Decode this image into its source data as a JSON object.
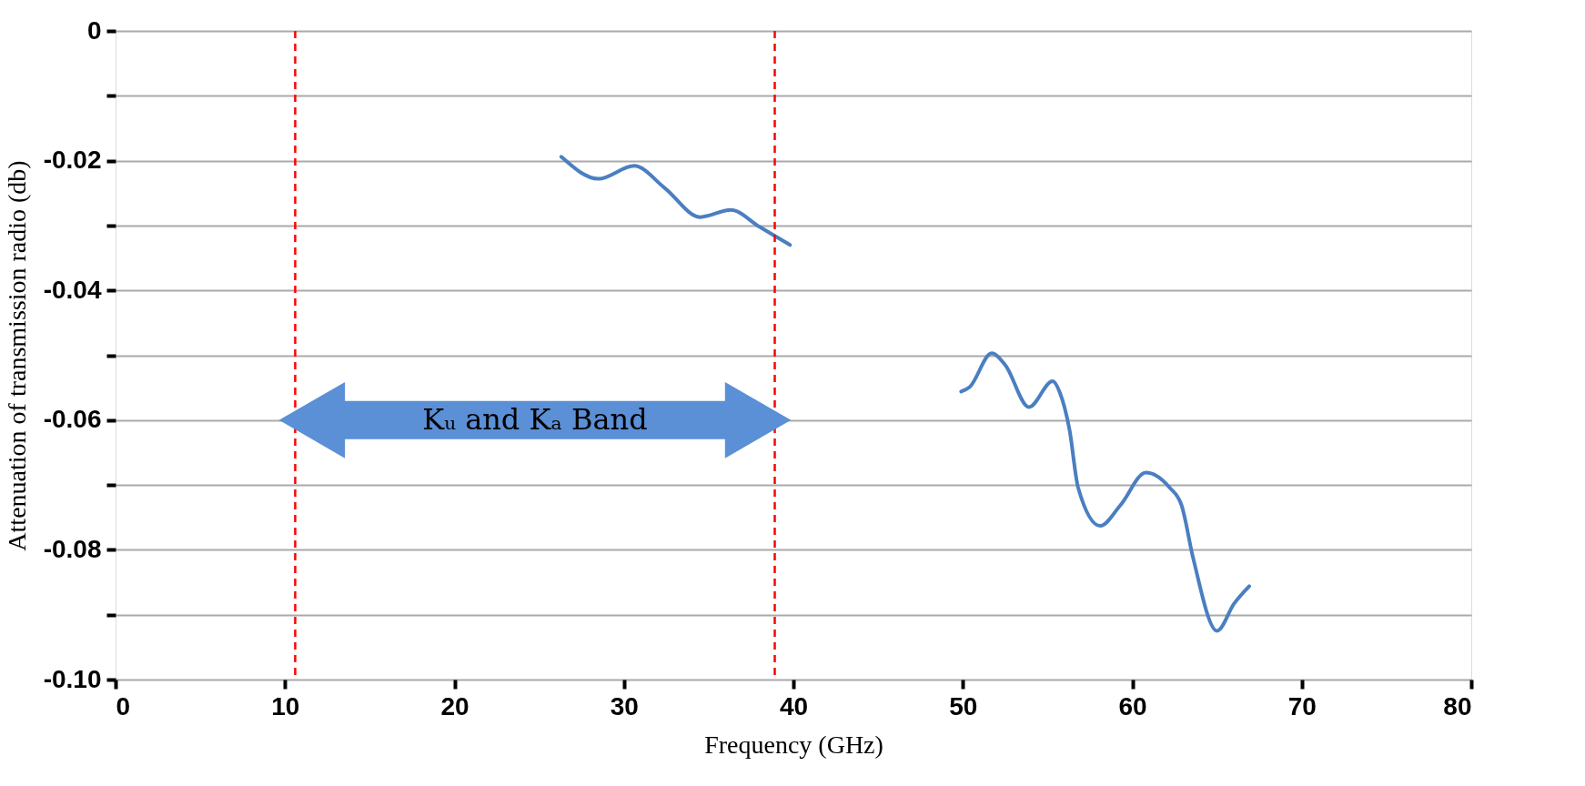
{
  "chart_data": {
    "type": "line",
    "xlabel": "Frequency (GHz)",
    "ylabel": "Attenuation of transmission radio (db)",
    "series": [
      {
        "color": "#4a7fc1",
        "x": [
          26.3,
          28.5,
          30.6,
          32.4,
          34.5,
          36.3,
          38.0,
          39.8
        ],
        "values": [
          -0.0194,
          -0.0228,
          -0.0208,
          -0.0242,
          -0.0287,
          -0.0276,
          -0.0302,
          -0.033
        ]
      },
      {
        "color": "#4a7fc1",
        "x": [
          49.9,
          50.4,
          51.7,
          52.5,
          53.9,
          55.3,
          55.7,
          56.3,
          56.8,
          58.1,
          59.3,
          60.8,
          62.2,
          62.9,
          63.6,
          65.0,
          66.0,
          66.9
        ],
        "values": [
          -0.0556,
          -0.0549,
          -0.0497,
          -0.0515,
          -0.058,
          -0.054,
          -0.0556,
          -0.0616,
          -0.0704,
          -0.0763,
          -0.0731,
          -0.0681,
          -0.0704,
          -0.0731,
          -0.0814,
          -0.0925,
          -0.0883,
          -0.0856
        ]
      }
    ],
    "xlim": [
      0,
      80
    ],
    "xticks": [
      0,
      10,
      20,
      30,
      40,
      50,
      60,
      70,
      80
    ],
    "ylim": [
      -0.1,
      0
    ],
    "yticks": [
      0,
      {
        "value": -0.01,
        "label": null
      },
      -0.02,
      {
        "value": -0.03,
        "label": null
      },
      -0.04,
      {
        "value": -0.05,
        "label": null
      },
      -0.06,
      {
        "value": -0.07,
        "label": null
      },
      -0.08,
      {
        "value": -0.09,
        "label": null
      },
      {
        "value": -0.1,
        "label": "-0.10"
      }
    ],
    "grid": "y",
    "line_style": "solid",
    "marker": "none",
    "ref_lines": [
      {
        "axis": "x",
        "value": 10.6,
        "color": "#ff0000",
        "line_style": "dashed"
      },
      {
        "axis": "x",
        "value": 38.9,
        "color": "#ff0000",
        "line_style": "dashed"
      }
    ],
    "annotations": [
      "Kᵤ and Kₐ  Band"
    ]
  }
}
